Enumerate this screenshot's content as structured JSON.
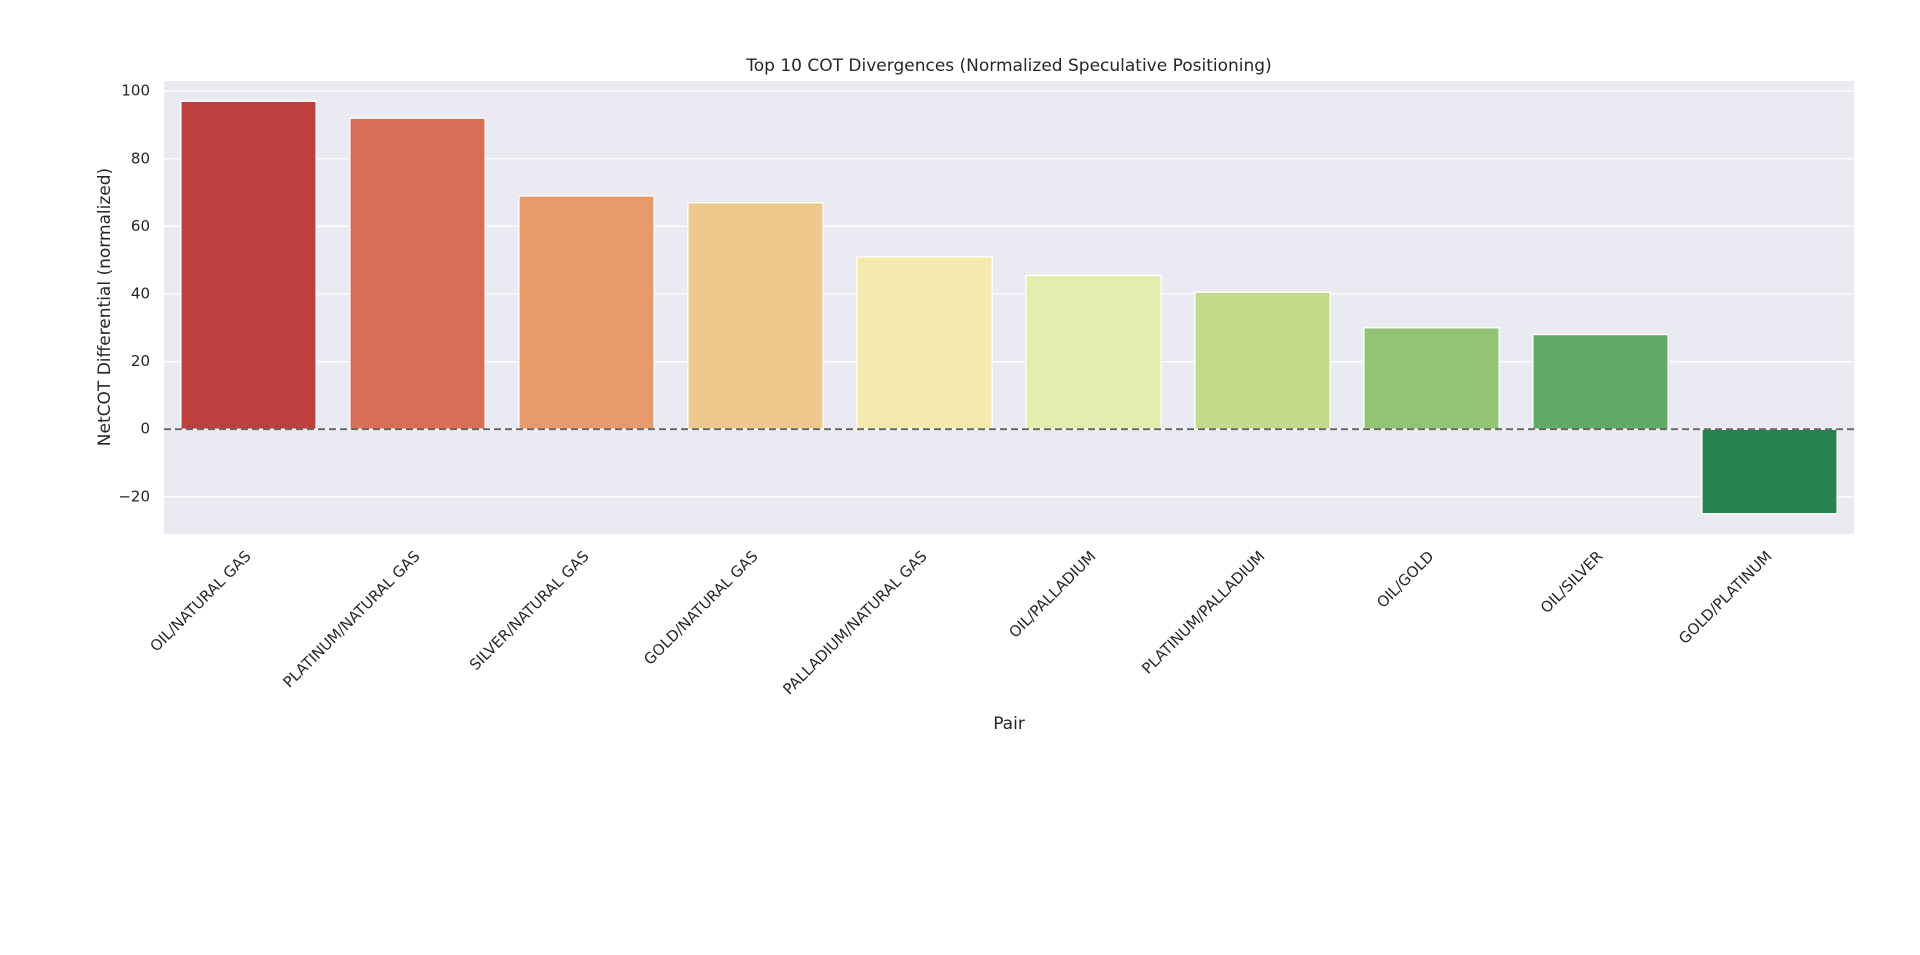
{
  "chart_data": {
    "type": "bar",
    "title": "Top 10 COT Divergences (Normalized Speculative Positioning)",
    "x_label": "Pair",
    "y_label": "NetCOT Differential (normalized)",
    "categories": [
      "OIL/NATURAL GAS",
      "PLATINUM/NATURAL GAS",
      "SILVER/NATURAL GAS",
      "GOLD/NATURAL GAS",
      "PALLADIUM/NATURAL GAS",
      "OIL/PALLADIUM",
      "PLATINUM/PALLADIUM",
      "OIL/GOLD",
      "OIL/SILVER",
      "GOLD/PLATINUM"
    ],
    "values": [
      97,
      92,
      69,
      67,
      51,
      45.5,
      40.5,
      30,
      28,
      -25
    ],
    "colors": [
      "#bf3f3e",
      "#d96d55",
      "#e89b6a",
      "#edc98b",
      "#f5e9ae",
      "#e4edae",
      "#c2db8a",
      "#93c374",
      "#62aa67",
      "#26854f"
    ],
    "ylim": [
      -31,
      103
    ],
    "yticks": [
      {
        "value": -20,
        "label": "−20"
      },
      0,
      20,
      40,
      60,
      80,
      100
    ],
    "grid": true,
    "reference_line": 0
  }
}
